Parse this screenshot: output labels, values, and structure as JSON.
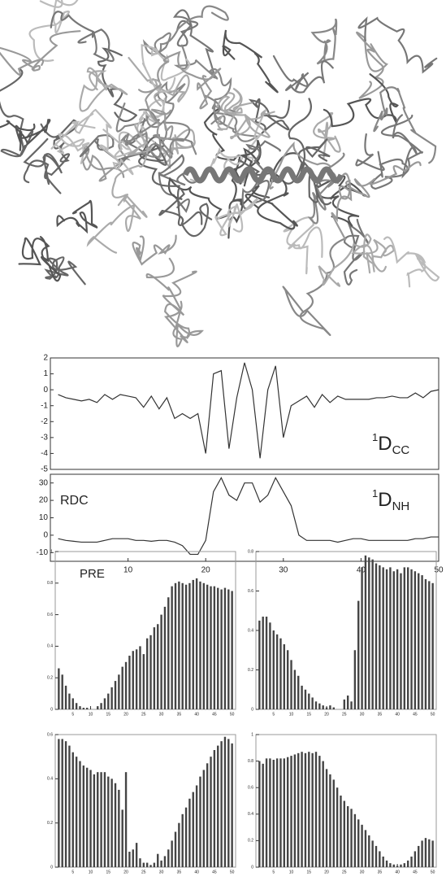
{
  "chart_data": [
    {
      "type": "line",
      "color": "#333333",
      "x": [
        1,
        2,
        3,
        4,
        5,
        6,
        7,
        8,
        9,
        10,
        11,
        12,
        13,
        14,
        15,
        16,
        17,
        18,
        19,
        20,
        21,
        22,
        23,
        24,
        25,
        26,
        27,
        28,
        29,
        30,
        31,
        32,
        33,
        34,
        35,
        36,
        37,
        38,
        39,
        40,
        41,
        42,
        43,
        44,
        45,
        46,
        47,
        48,
        49,
        50
      ],
      "values": [
        -0.3,
        -0.5,
        -0.6,
        -0.7,
        -0.6,
        -0.8,
        -0.3,
        -0.6,
        -0.3,
        -0.4,
        -0.5,
        -1.1,
        -0.4,
        -1.2,
        -0.5,
        -1.8,
        -1.5,
        -1.8,
        -1.5,
        -4,
        1,
        1.2,
        -3.7,
        -0.5,
        1.7,
        0,
        -4.3,
        0,
        1.5,
        -3,
        -1,
        -0.7,
        -0.4,
        -1.1,
        -0.3,
        -0.8,
        -0.4,
        -0.6,
        -0.6,
        -0.6,
        -0.6,
        -0.5,
        -0.5,
        -0.4,
        -0.5,
        -0.5,
        -0.2,
        -0.5,
        -0.1,
        0
      ],
      "xlim": [
        0,
        50
      ],
      "ylim": [
        -5,
        2
      ],
      "yticks": [
        -5,
        -4,
        -3,
        -2,
        -1,
        0,
        1,
        2
      ],
      "label": {
        "sup": "1",
        "main": "D",
        "sub": "CC"
      }
    },
    {
      "type": "line",
      "color": "#333333",
      "title": "RDC",
      "x": [
        1,
        2,
        3,
        4,
        5,
        6,
        7,
        8,
        9,
        10,
        11,
        12,
        13,
        14,
        15,
        16,
        17,
        18,
        19,
        20,
        21,
        22,
        23,
        24,
        25,
        26,
        27,
        28,
        29,
        30,
        31,
        32,
        33,
        34,
        35,
        36,
        37,
        38,
        39,
        40,
        41,
        42,
        43,
        44,
        45,
        46,
        47,
        48,
        49,
        50
      ],
      "values": [
        -2,
        -3,
        -3.5,
        -4,
        -4,
        -4,
        -3,
        -2,
        -2,
        -2,
        -3,
        -3,
        -3.5,
        -3,
        -3,
        -4,
        -6,
        -11,
        -11,
        -3,
        25,
        33,
        23,
        20,
        30,
        30,
        19,
        23,
        33,
        25,
        17,
        0,
        -3,
        -3,
        -3,
        -3,
        -4,
        -3,
        -2,
        -2,
        -3,
        -3,
        -3,
        -3,
        -3,
        -3,
        -2,
        -2,
        -1,
        -1
      ],
      "xlim": [
        0,
        50
      ],
      "ylim": [
        -15,
        35
      ],
      "xticks": [
        10,
        20,
        30,
        40,
        50
      ],
      "yticks": [
        -10,
        0,
        10,
        20,
        30
      ],
      "label": {
        "sup": "1",
        "main": "D",
        "sub": "NH"
      }
    },
    {
      "type": "bar",
      "color": "#444444",
      "title": "PRE",
      "x": [
        1,
        2,
        3,
        4,
        5,
        6,
        7,
        8,
        9,
        10,
        11,
        12,
        13,
        14,
        15,
        16,
        17,
        18,
        19,
        20,
        21,
        22,
        23,
        24,
        25,
        26,
        27,
        28,
        29,
        30,
        31,
        32,
        33,
        34,
        35,
        36,
        37,
        38,
        39,
        40,
        41,
        42,
        43,
        44,
        45,
        46,
        47,
        48,
        49,
        50
      ],
      "values": [
        0.26,
        0.22,
        0.15,
        0.1,
        0.07,
        0.04,
        0.02,
        0.01,
        0.01,
        0,
        0,
        0.02,
        0.04,
        0.07,
        0.1,
        0.14,
        0.18,
        0.22,
        0.27,
        0.3,
        0.34,
        0.37,
        0.38,
        0.4,
        0.35,
        0.45,
        0.47,
        0.52,
        0.54,
        0.6,
        0.65,
        0.71,
        0.78,
        0.8,
        0.81,
        0.8,
        0.79,
        0.8,
        0.82,
        0.83,
        0.81,
        0.8,
        0.79,
        0.78,
        0.78,
        0.77,
        0.76,
        0.77,
        0.76,
        0.75
      ],
      "xlim": [
        0,
        51
      ],
      "ylim": [
        0,
        1
      ],
      "xticks": [
        5,
        10,
        15,
        20,
        25,
        30,
        35,
        40,
        45,
        50
      ],
      "yticks": [
        0,
        0.2,
        0.4,
        0.6,
        0.8,
        1
      ]
    },
    {
      "type": "bar",
      "color": "#444444",
      "x": [
        1,
        2,
        3,
        4,
        5,
        6,
        7,
        8,
        9,
        10,
        11,
        12,
        13,
        14,
        15,
        16,
        17,
        18,
        19,
        20,
        21,
        22,
        23,
        24,
        25,
        26,
        27,
        28,
        29,
        30,
        31,
        32,
        33,
        34,
        35,
        36,
        37,
        38,
        39,
        40,
        41,
        42,
        43,
        44,
        45,
        46,
        47,
        48,
        49,
        50
      ],
      "values": [
        0.45,
        0.47,
        0.47,
        0.44,
        0.4,
        0.38,
        0.36,
        0.33,
        0.3,
        0.25,
        0.2,
        0.17,
        0.12,
        0.1,
        0.08,
        0.06,
        0.04,
        0.03,
        0.02,
        0.01,
        0.02,
        0.01,
        0,
        0,
        0.05,
        0.07,
        0.04,
        0.3,
        0.55,
        0.72,
        0.78,
        0.77,
        0.76,
        0.74,
        0.73,
        0.72,
        0.71,
        0.72,
        0.7,
        0.71,
        0.69,
        0.72,
        0.72,
        0.71,
        0.7,
        0.69,
        0.68,
        0.66,
        0.65,
        0.64
      ],
      "xlim": [
        0,
        51
      ],
      "ylim": [
        0,
        0.8
      ],
      "xticks": [
        5,
        10,
        15,
        20,
        25,
        30,
        35,
        40,
        45,
        50
      ],
      "yticks": [
        0,
        0.2,
        0.4,
        0.6,
        0.8
      ]
    },
    {
      "type": "bar",
      "color": "#444444",
      "x": [
        1,
        2,
        3,
        4,
        5,
        6,
        7,
        8,
        9,
        10,
        11,
        12,
        13,
        14,
        15,
        16,
        17,
        18,
        19,
        20,
        21,
        22,
        23,
        24,
        25,
        26,
        27,
        28,
        29,
        30,
        31,
        32,
        33,
        34,
        35,
        36,
        37,
        38,
        39,
        40,
        41,
        42,
        43,
        44,
        45,
        46,
        47,
        48,
        49,
        50
      ],
      "values": [
        0.58,
        0.58,
        0.57,
        0.55,
        0.52,
        0.5,
        0.48,
        0.46,
        0.45,
        0.44,
        0.42,
        0.43,
        0.43,
        0.43,
        0.41,
        0.4,
        0.38,
        0.35,
        0.26,
        0.43,
        0.07,
        0.08,
        0.11,
        0.04,
        0.02,
        0.02,
        0.01,
        0.02,
        0.06,
        0.03,
        0.05,
        0.08,
        0.12,
        0.16,
        0.2,
        0.24,
        0.27,
        0.31,
        0.34,
        0.37,
        0.41,
        0.44,
        0.47,
        0.5,
        0.53,
        0.55,
        0.57,
        0.59,
        0.58,
        0.56
      ],
      "xlim": [
        0,
        51
      ],
      "ylim": [
        0,
        0.6
      ],
      "xticks": [
        5,
        10,
        15,
        20,
        25,
        30,
        35,
        40,
        45,
        50
      ],
      "yticks": [
        0,
        0.2,
        0.4,
        0.6
      ]
    },
    {
      "type": "bar",
      "color": "#444444",
      "x": [
        1,
        2,
        3,
        4,
        5,
        6,
        7,
        8,
        9,
        10,
        11,
        12,
        13,
        14,
        15,
        16,
        17,
        18,
        19,
        20,
        21,
        22,
        23,
        24,
        25,
        26,
        27,
        28,
        29,
        30,
        31,
        32,
        33,
        34,
        35,
        36,
        37,
        38,
        39,
        40,
        41,
        42,
        43,
        44,
        45,
        46,
        47,
        48,
        49,
        50
      ],
      "values": [
        0.8,
        0.78,
        0.82,
        0.82,
        0.81,
        0.82,
        0.82,
        0.82,
        0.83,
        0.84,
        0.85,
        0.86,
        0.87,
        0.86,
        0.87,
        0.86,
        0.87,
        0.84,
        0.8,
        0.74,
        0.7,
        0.66,
        0.6,
        0.54,
        0.5,
        0.46,
        0.44,
        0.4,
        0.36,
        0.32,
        0.28,
        0.24,
        0.2,
        0.16,
        0.12,
        0.08,
        0.05,
        0.03,
        0.02,
        0.01,
        0.02,
        0.03,
        0.05,
        0.08,
        0.12,
        0.16,
        0.2,
        0.22,
        0.21,
        0.2
      ],
      "xlim": [
        0,
        51
      ],
      "ylim": [
        0,
        1
      ],
      "xticks": [
        5,
        10,
        15,
        20,
        25,
        30,
        35,
        40,
        45,
        50
      ],
      "yticks": [
        0,
        0.2,
        0.4,
        0.6,
        0.8,
        1
      ]
    }
  ]
}
